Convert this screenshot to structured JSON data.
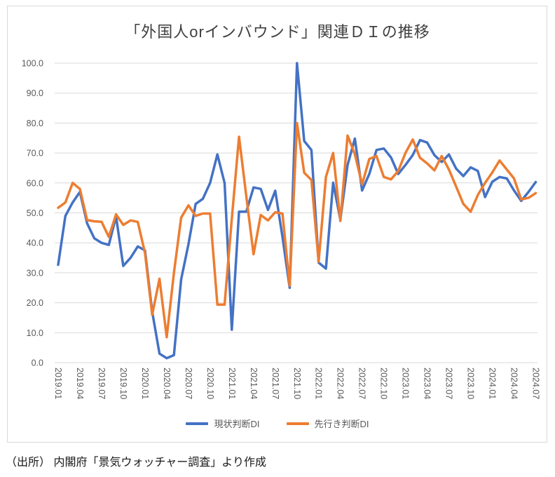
{
  "chart": {
    "title": "「外国人orインバウンド」関連ＤＩの推移",
    "source": "（出所） 内閣府「景気ウォッチャー調査」より作成",
    "colors": {
      "current_line": "#4472C4",
      "outlook_line": "#ED7D31",
      "gridline": "#D9D9D9",
      "axis_text": "#595959",
      "frame_border": "#D9D9D9",
      "title_text": "#3F3F3F"
    }
  },
  "chart_data": {
    "type": "line",
    "title": "「外国人orインバウンド」関連ＤＩの推移",
    "xlabel": "",
    "ylabel": "",
    "ylim": [
      0,
      100
    ],
    "grid": "horizontal",
    "legend_position": "bottom",
    "x_tick_every": 3,
    "y_ticks": [
      "0.0",
      "10.0",
      "20.0",
      "30.0",
      "40.0",
      "50.0",
      "60.0",
      "70.0",
      "80.0",
      "90.0",
      "100.0"
    ],
    "x": [
      "2019.01",
      "2019.02",
      "2019.03",
      "2019.04",
      "2019.05",
      "2019.06",
      "2019.07",
      "2019.08",
      "2019.09",
      "2019.10",
      "2019.11",
      "2019.12",
      "2020.01",
      "2020.02",
      "2020.03",
      "2020.04",
      "2020.05",
      "2020.06",
      "2020.07",
      "2020.08",
      "2020.09",
      "2020.10",
      "2020.11",
      "2020.12",
      "2021.01",
      "2021.02",
      "2021.03",
      "2021.04",
      "2021.05",
      "2021.06",
      "2021.07",
      "2021.08",
      "2021.09",
      "2021.10",
      "2021.11",
      "2021.12",
      "2022.01",
      "2022.02",
      "2022.03",
      "2022.04",
      "2022.05",
      "2022.06",
      "2022.07",
      "2022.08",
      "2022.09",
      "2022.10",
      "2022.11",
      "2022.12",
      "2023.01",
      "2023.02",
      "2023.03",
      "2023.04",
      "2023.05",
      "2023.06",
      "2023.07",
      "2023.08",
      "2023.09",
      "2023.10",
      "2023.11",
      "2023.12",
      "2024.01",
      "2024.02",
      "2024.03",
      "2024.04",
      "2024.05",
      "2024.06",
      "2024.07"
    ],
    "series": [
      {
        "name": "現状判断DI",
        "color": "#4472C4",
        "values": [
          32.7,
          49,
          53.5,
          57,
          46.5,
          41.5,
          40,
          39.3,
          48.8,
          32.3,
          35,
          38.8,
          37.5,
          17,
          3,
          1.5,
          2.5,
          27.8,
          39.5,
          53,
          54.7,
          60,
          69.5,
          60,
          11,
          50.4,
          50.4,
          58.5,
          58,
          51,
          57.4,
          42,
          25,
          100,
          74,
          71,
          33.4,
          31.4,
          60.1,
          47.7,
          66,
          74.8,
          57.5,
          63,
          71,
          71.5,
          68.5,
          63,
          66,
          69.3,
          74.3,
          73.5,
          69.3,
          67,
          69.5,
          64.8,
          62.3,
          65.2,
          64,
          55.3,
          60.4,
          62,
          61.5,
          57.5,
          54,
          57,
          60.3
        ]
      },
      {
        "name": "先行き判断DI",
        "color": "#ED7D31",
        "values": [
          51.7,
          53.5,
          60,
          58,
          47.6,
          47.2,
          47,
          42,
          49.5,
          46,
          47.5,
          47,
          36.6,
          16,
          28,
          8.5,
          30,
          48.4,
          52.5,
          49,
          49.8,
          49.8,
          19.4,
          19.4,
          48,
          75.4,
          55.5,
          36.2,
          49.3,
          47.5,
          50.2,
          49.8,
          25.7,
          80,
          63.4,
          61,
          33.7,
          62,
          70,
          47.3,
          75.8,
          69.6,
          59.5,
          68,
          69,
          62,
          61.2,
          64,
          70,
          74.5,
          68.4,
          66.5,
          64.2,
          69,
          64.5,
          58.8,
          53,
          50.4,
          56,
          60,
          63.5,
          67.5,
          64.5,
          61.5,
          54.5,
          55,
          56.6
        ]
      }
    ]
  }
}
